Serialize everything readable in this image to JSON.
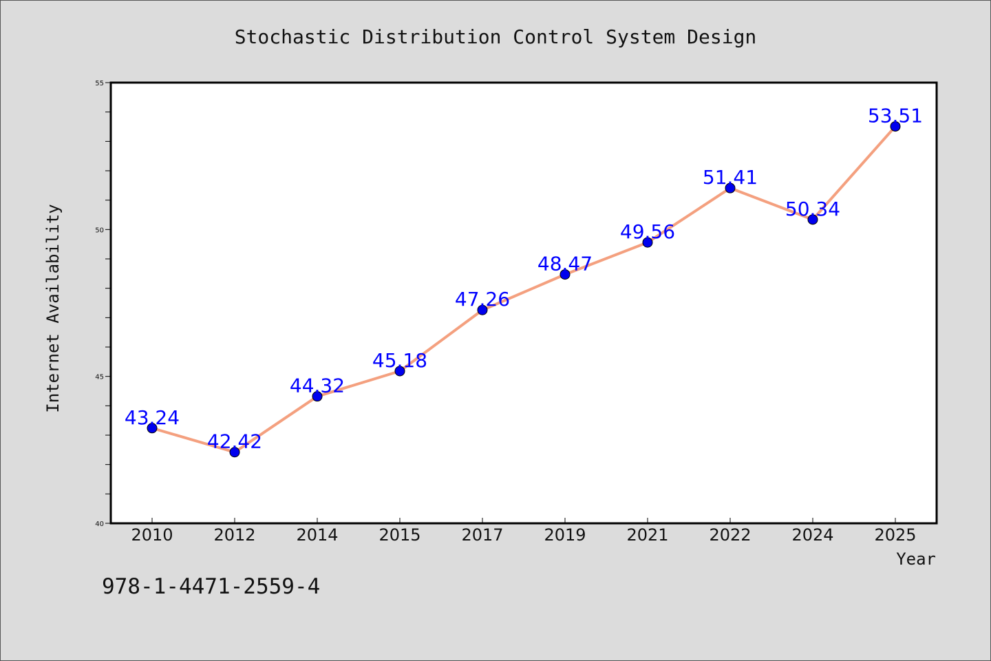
{
  "footer_code": "978-1-4471-2559-4",
  "chart_data": {
    "type": "line",
    "title": "Stochastic Distribution Control System Design",
    "xlabel": "Year",
    "ylabel": "Internet Availability",
    "categories": [
      "2010",
      "2012",
      "2014",
      "2015",
      "2017",
      "2019",
      "2021",
      "2022",
      "2024",
      "2025"
    ],
    "series": [
      {
        "values": [
          43.24,
          42.42,
          44.32,
          45.18,
          47.26,
          48.47,
          49.56,
          51.41,
          50.34,
          53.51
        ]
      }
    ],
    "data_labels": [
      "43.24",
      "42.42",
      "44.32",
      "45.18",
      "47.26",
      "48.47",
      "49.56",
      "51.41",
      "50.34",
      "53.51"
    ],
    "ylim": [
      40,
      55
    ],
    "y_ticks": [
      "40",
      "45",
      "50",
      "55"
    ],
    "grid": false,
    "legend": "none",
    "colors": {
      "line": "#f4a07f",
      "marker": "#0000ee",
      "marker_edge": "#000000",
      "data_label": "#0000ff",
      "background": "#dcdcdc",
      "plot_area": "#ffffff"
    }
  }
}
